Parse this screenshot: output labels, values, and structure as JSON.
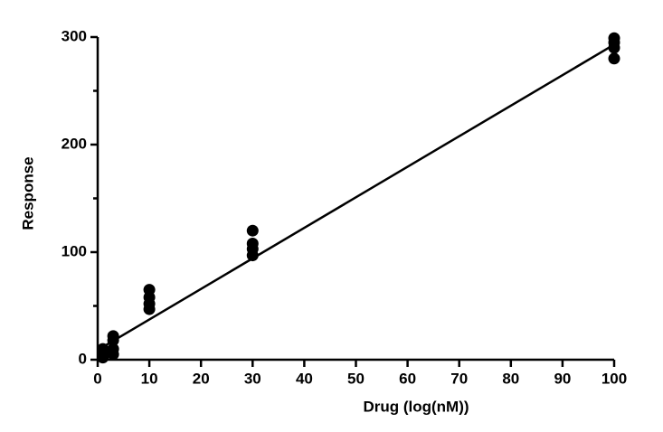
{
  "chart_data": {
    "type": "scatter",
    "xlabel": "Drug (log(nM))",
    "ylabel": "Response",
    "xlim": [
      0,
      100
    ],
    "ylim": [
      0,
      300
    ],
    "xticks": [
      0,
      10,
      20,
      30,
      40,
      50,
      60,
      70,
      80,
      90,
      100
    ],
    "yticks": [
      0,
      100,
      200,
      300
    ],
    "yminorticks": [
      50,
      150,
      250
    ],
    "color": "#000000",
    "x": [
      1,
      1,
      1,
      1,
      3,
      3,
      3,
      3,
      10,
      10,
      10,
      10,
      30,
      30,
      30,
      30,
      100,
      100,
      100,
      100
    ],
    "values": [
      2,
      5,
      8,
      10,
      5,
      10,
      18,
      22,
      47,
      52,
      58,
      65,
      97,
      103,
      108,
      120,
      280,
      290,
      295,
      299
    ],
    "fit_line": {
      "x": [
        0,
        100
      ],
      "values": [
        9,
        293
      ]
    }
  }
}
